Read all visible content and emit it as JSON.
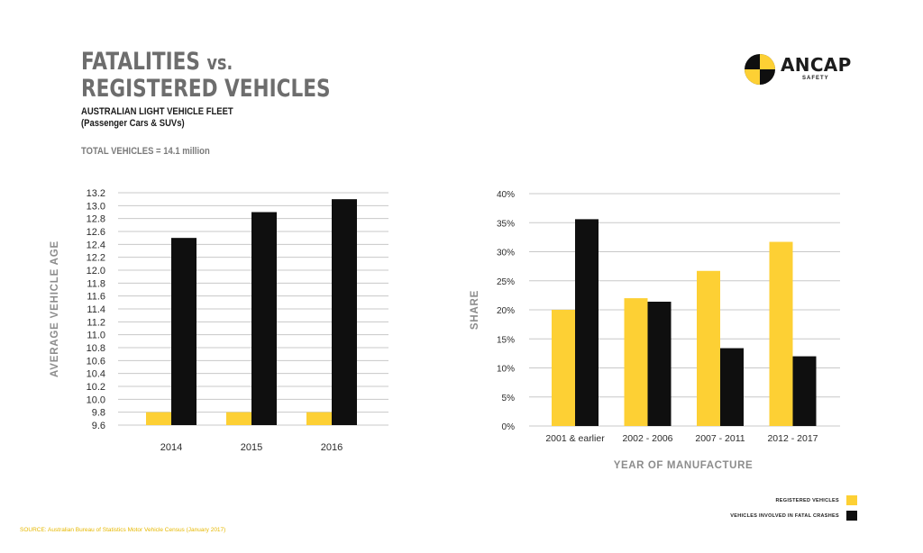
{
  "header": {
    "title_line1": "FATALITIES",
    "title_vs": "vs.",
    "title_line2": "REGISTERED VEHICLES",
    "subtitle_line1": "AUSTRALIAN LIGHT VEHICLE FLEET",
    "subtitle_line2": "(Passenger Cars & SUVs)",
    "total_vehicles": "TOTAL VEHICLES = 14.1 million"
  },
  "logo": {
    "name": "ANCAP",
    "sub": "SAFETY"
  },
  "colors": {
    "registered": "#fdd034",
    "fatal": "#0f0f0f",
    "grid": "#c8c8c8",
    "axis_title": "#8c8c8c",
    "tick": "#2b2b2b"
  },
  "legend": {
    "registered": "REGISTERED VEHICLES",
    "fatal": "VEHICLES INVOLVED IN FATAL CRASHES"
  },
  "source": "SOURCE: Australian Bureau of Statistics Motor Vehicle Census (January 2017)",
  "chart_data": [
    {
      "type": "bar",
      "categories": [
        "2014",
        "2015",
        "2016"
      ],
      "series": [
        {
          "name": "REGISTERED VEHICLES",
          "values": [
            9.8,
            9.8,
            9.8
          ]
        },
        {
          "name": "VEHICLES INVOLVED IN FATAL CRASHES",
          "values": [
            12.5,
            12.9,
            13.1
          ]
        }
      ],
      "ylabel": "AVERAGE VEHICLE AGE",
      "xlabel": "",
      "ylim": [
        9.6,
        13.2
      ],
      "yticks": [
        "13.2",
        "13.0",
        "12.8",
        "12.6",
        "12.4",
        "12.2",
        "12.0",
        "11.8",
        "11.6",
        "11.4",
        "11.2",
        "11.0",
        "10.8",
        "10.6",
        "10.4",
        "10.2",
        "10.0",
        "9.8",
        "9.6"
      ],
      "grid": true
    },
    {
      "type": "bar",
      "categories": [
        "2001 & earlier",
        "2002 - 2006",
        "2007 - 2011",
        "2012 - 2017"
      ],
      "series": [
        {
          "name": "REGISTERED VEHICLES",
          "values": [
            20.0,
            22.0,
            26.7,
            31.7
          ]
        },
        {
          "name": "VEHICLES INVOLVED IN FATAL CRASHES",
          "values": [
            35.6,
            21.4,
            13.4,
            12.0
          ]
        }
      ],
      "ylabel": "SHARE",
      "xlabel": "YEAR OF MANUFACTURE",
      "ylim": [
        0,
        40
      ],
      "yticks": [
        "40%",
        "35%",
        "30%",
        "25%",
        "20%",
        "15%",
        "10%",
        "5%",
        "0%"
      ],
      "grid": true,
      "legend": "bottom-right"
    }
  ]
}
